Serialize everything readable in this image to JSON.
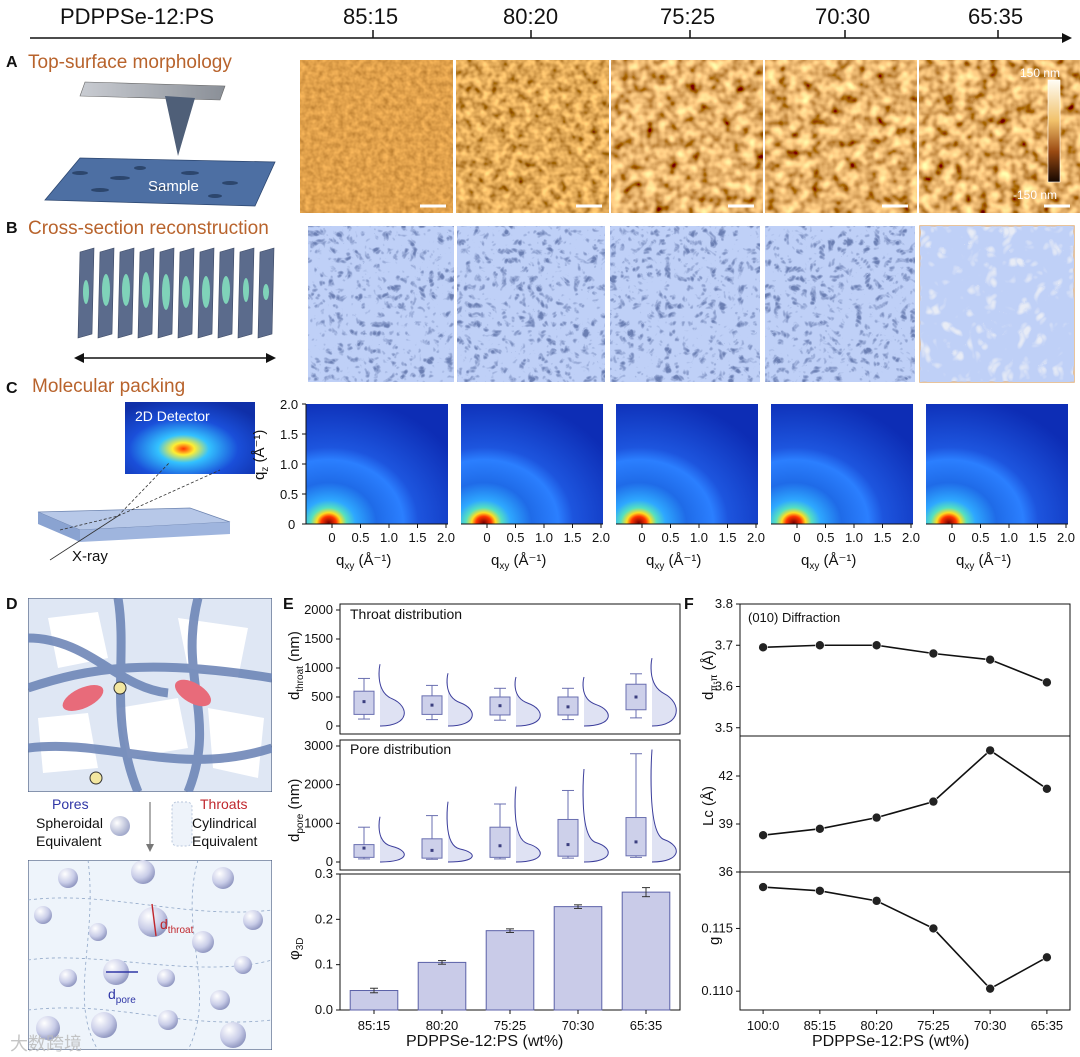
{
  "header": {
    "system_label": "PDPPSe-12:PS",
    "ratios": [
      "85:15",
      "80:20",
      "75:25",
      "70:30",
      "65:35"
    ]
  },
  "panelA": {
    "letter": "A",
    "title": "Top-surface morphology",
    "sample_label": "Sample",
    "colorbar_max": "150 nm",
    "colorbar_min": "-150 nm"
  },
  "panelB": {
    "letter": "B",
    "title": "Cross-section reconstruction"
  },
  "panelC": {
    "letter": "C",
    "title": "Molecular packing",
    "detector_label": "2D Detector",
    "xray_label": "X-ray",
    "ylabel": "q",
    "ylabel_sub": "z",
    "ylabel_unit": "(Å⁻¹)",
    "xlabel": "q",
    "xlabel_sub": "xy",
    "xlabel_unit": "(Å⁻¹)",
    "y_ticks": [
      "2.0",
      "1.5",
      "1.0",
      "0.5",
      "0"
    ],
    "x_ticks": [
      "0",
      "0.5",
      "1.0",
      "1.5",
      "2.0"
    ]
  },
  "panelD": {
    "letter": "D",
    "pores_label": "Pores",
    "throats_label": "Throats",
    "pores_desc_1": "Spheroidal",
    "pores_desc_2": "Equivalent",
    "throats_desc_1": "Cylindrical",
    "throats_desc_2": "Equivalent",
    "d_throat": "d",
    "d_throat_sub": "throat",
    "d_pore": "d",
    "d_pore_sub": "pore"
  },
  "panelE": {
    "letter": "E",
    "throat_title": "Throat distribution",
    "pore_title": "Pore distribution",
    "xlabel": "PDPPSe-12:PS (wt%)"
  },
  "panelF": {
    "letter": "F",
    "title": "(010) Diffraction",
    "xlabel": "PDPPSe-12:PS (wt%)"
  },
  "watermark": "大数跨境",
  "chart_data": [
    {
      "type": "box",
      "panel": "E-top",
      "title": "Throat distribution",
      "ylabel": "d_throat (nm)",
      "ylim": [
        0,
        2000
      ],
      "y_ticks": [
        0,
        500,
        1000,
        1500,
        2000
      ],
      "categories": [
        "85:15",
        "80:20",
        "75:25",
        "70:30",
        "65:35"
      ],
      "boxes": [
        {
          "whisker_low": 120,
          "q1": 200,
          "median": 420,
          "mean": 420,
          "q3": 600,
          "whisker_high": 820
        },
        {
          "whisker_low": 110,
          "q1": 200,
          "median": 360,
          "mean": 360,
          "q3": 520,
          "whisker_high": 700
        },
        {
          "whisker_low": 100,
          "q1": 190,
          "median": 350,
          "mean": 350,
          "q3": 500,
          "whisker_high": 650
        },
        {
          "whisker_low": 110,
          "q1": 190,
          "median": 330,
          "mean": 330,
          "q3": 500,
          "whisker_high": 650
        },
        {
          "whisker_low": 140,
          "q1": 280,
          "median": 500,
          "mean": 500,
          "q3": 720,
          "whisker_high": 900
        }
      ]
    },
    {
      "type": "box",
      "panel": "E-middle",
      "title": "Pore distribution",
      "ylabel": "d_pore (nm)",
      "ylim": [
        0,
        3000
      ],
      "y_ticks": [
        0,
        1000,
        2000,
        3000
      ],
      "categories": [
        "85:15",
        "80:20",
        "75:25",
        "70:30",
        "65:35"
      ],
      "boxes": [
        {
          "whisker_low": 80,
          "q1": 120,
          "median": 360,
          "mean": 360,
          "q3": 450,
          "whisker_high": 900
        },
        {
          "whisker_low": 70,
          "q1": 100,
          "median": 300,
          "mean": 300,
          "q3": 600,
          "whisker_high": 1200
        },
        {
          "whisker_low": 80,
          "q1": 120,
          "median": 420,
          "mean": 420,
          "q3": 900,
          "whisker_high": 1500
        },
        {
          "whisker_low": 100,
          "q1": 150,
          "median": 450,
          "mean": 450,
          "q3": 1100,
          "whisker_high": 1850
        },
        {
          "whisker_low": 120,
          "q1": 160,
          "median": 520,
          "mean": 520,
          "q3": 1150,
          "whisker_high": 2800
        }
      ]
    },
    {
      "type": "bar",
      "panel": "E-bottom",
      "ylabel": "φ3D",
      "ylim": [
        0,
        0.3
      ],
      "y_ticks": [
        "0.0",
        "0.1",
        "0.2",
        "0.3"
      ],
      "categories": [
        "85:15",
        "80:20",
        "75:25",
        "70:30",
        "65:35"
      ],
      "values": [
        0.043,
        0.105,
        0.175,
        0.228,
        0.26
      ],
      "errors": [
        0.005,
        0.004,
        0.004,
        0.004,
        0.01
      ]
    },
    {
      "type": "line",
      "panel": "F-top",
      "ylabel": "dπ-π (Å)",
      "ylim": [
        3.48,
        3.8
      ],
      "y_ticks": [
        "3.5",
        "3.6",
        "3.7",
        "3.8"
      ],
      "categories": [
        "100:0",
        "85:15",
        "80:20",
        "75:25",
        "70:30",
        "65:35"
      ],
      "values": [
        3.695,
        3.7,
        3.7,
        3.68,
        3.665,
        3.61
      ]
    },
    {
      "type": "line",
      "panel": "F-middle",
      "ylabel": "Lc (Å)",
      "ylim": [
        36,
        44.5
      ],
      "y_ticks": [
        "36",
        "39",
        "42"
      ],
      "categories": [
        "100:0",
        "85:15",
        "80:20",
        "75:25",
        "70:30",
        "65:35"
      ],
      "values": [
        38.3,
        38.7,
        39.4,
        40.4,
        43.6,
        41.2
      ]
    },
    {
      "type": "line",
      "panel": "F-bottom",
      "ylabel": "g",
      "ylim": [
        0.1085,
        0.1195
      ],
      "y_ticks": [
        "0.110",
        "0.115"
      ],
      "categories": [
        "100:0",
        "85:15",
        "80:20",
        "75:25",
        "70:30",
        "65:35"
      ],
      "values": [
        0.1183,
        0.118,
        0.1172,
        0.115,
        0.1102,
        0.1127
      ]
    }
  ]
}
